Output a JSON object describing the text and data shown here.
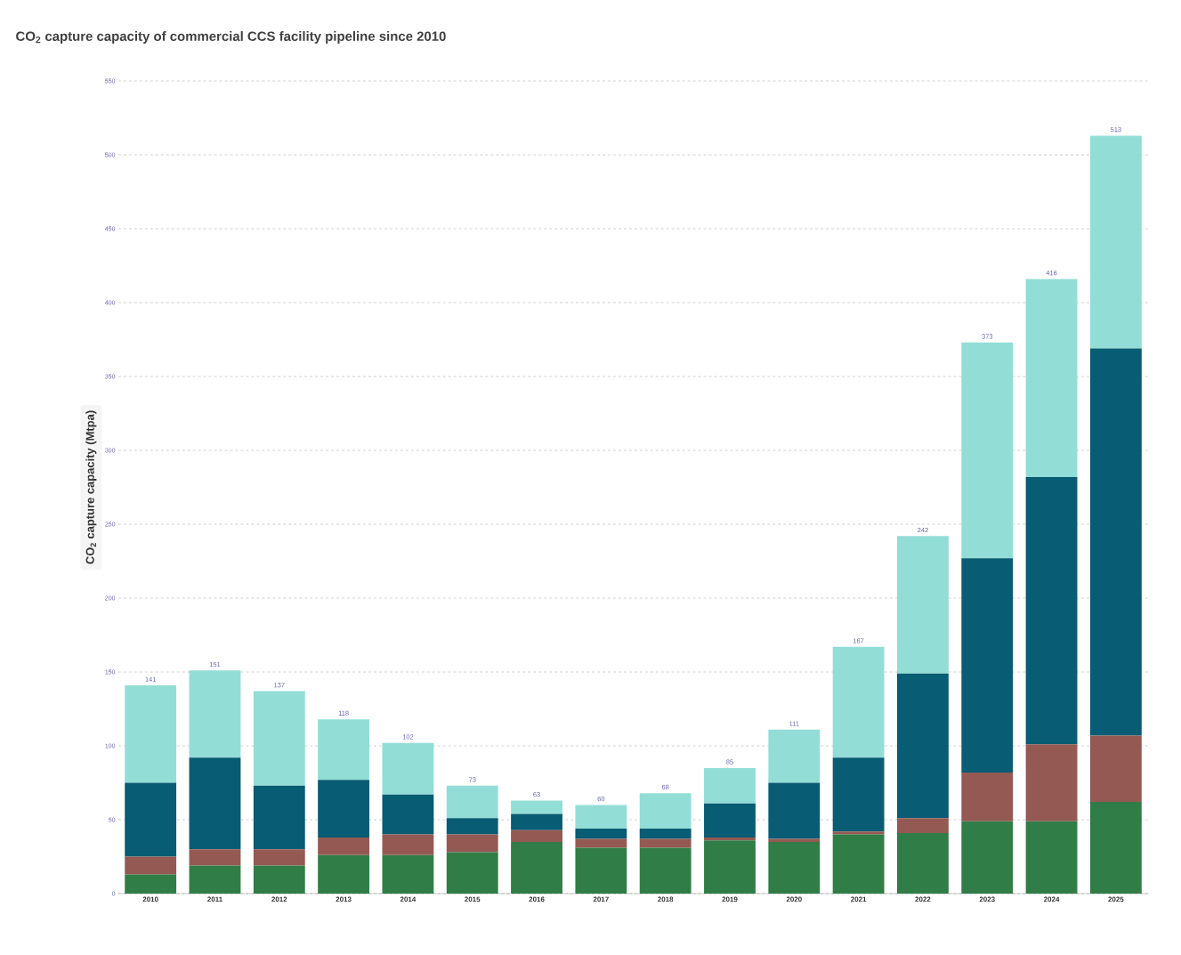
{
  "chart_data": {
    "type": "bar",
    "title": "CO$_{2}$ capture capacity of commercial CCS facility pipeline since 2010",
    "ylabel": "CO$_{2}$ capture capacity (Mtpa)",
    "categories": [
      "2010",
      "2011",
      "2012",
      "2013",
      "2014",
      "2015",
      "2016",
      "2017",
      "2018",
      "2019",
      "2020",
      "2021",
      "2022",
      "2023",
      "2024",
      "2025"
    ],
    "series": [
      {
        "color": "#317d47",
        "values": [
          13,
          19,
          19,
          26,
          26,
          28,
          35,
          31,
          31,
          36,
          35,
          40,
          41,
          49,
          49,
          62
        ]
      },
      {
        "color": "#945953",
        "values": [
          12,
          11,
          11,
          12,
          14,
          12,
          8,
          6,
          6,
          2,
          2,
          2,
          10,
          33,
          52,
          45
        ]
      },
      {
        "color": "#085c73",
        "values": [
          50,
          62,
          43,
          39,
          27,
          11,
          11,
          7,
          7,
          23,
          38,
          50,
          98,
          145,
          181,
          262
        ]
      },
      {
        "color": "#93ddd7",
        "values": [
          66,
          59,
          64,
          41,
          35,
          22,
          9,
          16,
          24,
          24,
          36,
          75,
          93,
          146,
          134,
          144
        ]
      }
    ],
    "stacked": true,
    "totals": [
      "141",
      "151",
      "137",
      "118",
      "102",
      "73",
      "63",
      "60",
      "68",
      "85",
      "111",
      "167",
      "242",
      "373",
      "416",
      "513"
    ],
    "ylim": [
      0,
      550
    ],
    "yticks": [
      0,
      50,
      100,
      150,
      200,
      250,
      300,
      350,
      400,
      450,
      500,
      550
    ],
    "grid": "y"
  }
}
